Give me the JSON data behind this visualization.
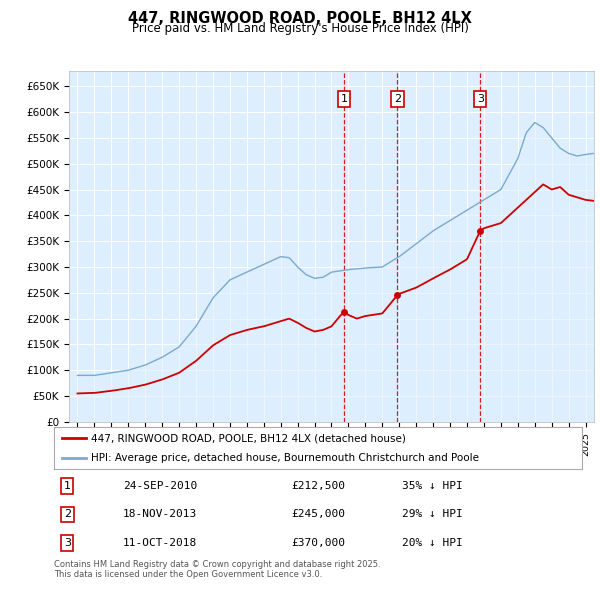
{
  "title": "447, RINGWOOD ROAD, POOLE, BH12 4LX",
  "subtitle": "Price paid vs. HM Land Registry's House Price Index (HPI)",
  "ylim": [
    0,
    680000
  ],
  "yticks": [
    0,
    50000,
    100000,
    150000,
    200000,
    250000,
    300000,
    350000,
    400000,
    450000,
    500000,
    550000,
    600000,
    650000
  ],
  "ytick_labels": [
    "£0",
    "£50K",
    "£100K",
    "£150K",
    "£200K",
    "£250K",
    "£300K",
    "£350K",
    "£400K",
    "£450K",
    "£500K",
    "£550K",
    "£600K",
    "£650K"
  ],
  "xlim_start": 1994.5,
  "xlim_end": 2025.5,
  "transactions": [
    {
      "num": 1,
      "date": "24-SEP-2010",
      "price": 212500,
      "year": 2010.73,
      "price_on_line": 212500,
      "hpi_pct": "35% ↓ HPI"
    },
    {
      "num": 2,
      "date": "18-NOV-2013",
      "price": 245000,
      "year": 2013.88,
      "price_on_line": 245000,
      "hpi_pct": "29% ↓ HPI"
    },
    {
      "num": 3,
      "date": "11-OCT-2018",
      "price": 370000,
      "year": 2018.78,
      "price_on_line": 370000,
      "hpi_pct": "20% ↓ HPI"
    }
  ],
  "legend_property": "447, RINGWOOD ROAD, POOLE, BH12 4LX (detached house)",
  "legend_hpi": "HPI: Average price, detached house, Bournemouth Christchurch and Poole",
  "footnote": "Contains HM Land Registry data © Crown copyright and database right 2025.\nThis data is licensed under the Open Government Licence v3.0.",
  "red_color": "#cc0000",
  "blue_color": "#7aaacc",
  "blue_fill": "#ddeeff",
  "bg_color": "#ddeeff",
  "grid_color": "#ffffff"
}
